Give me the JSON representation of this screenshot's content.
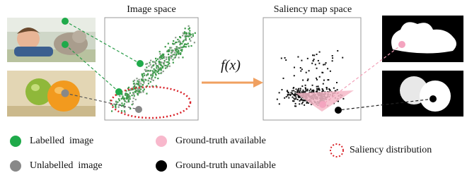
{
  "image_space": {
    "title": "Image space"
  },
  "saliency_space": {
    "title": "Saliency map space"
  },
  "mapping": {
    "label": "f(x)"
  },
  "legend": [
    {
      "label": "Labelled  image"
    },
    {
      "label": "Unlabelled  image"
    },
    {
      "label": "Ground-truth available"
    },
    {
      "label": "Ground-truth unavailable"
    },
    {
      "label": "Saliency distribution"
    }
  ]
}
